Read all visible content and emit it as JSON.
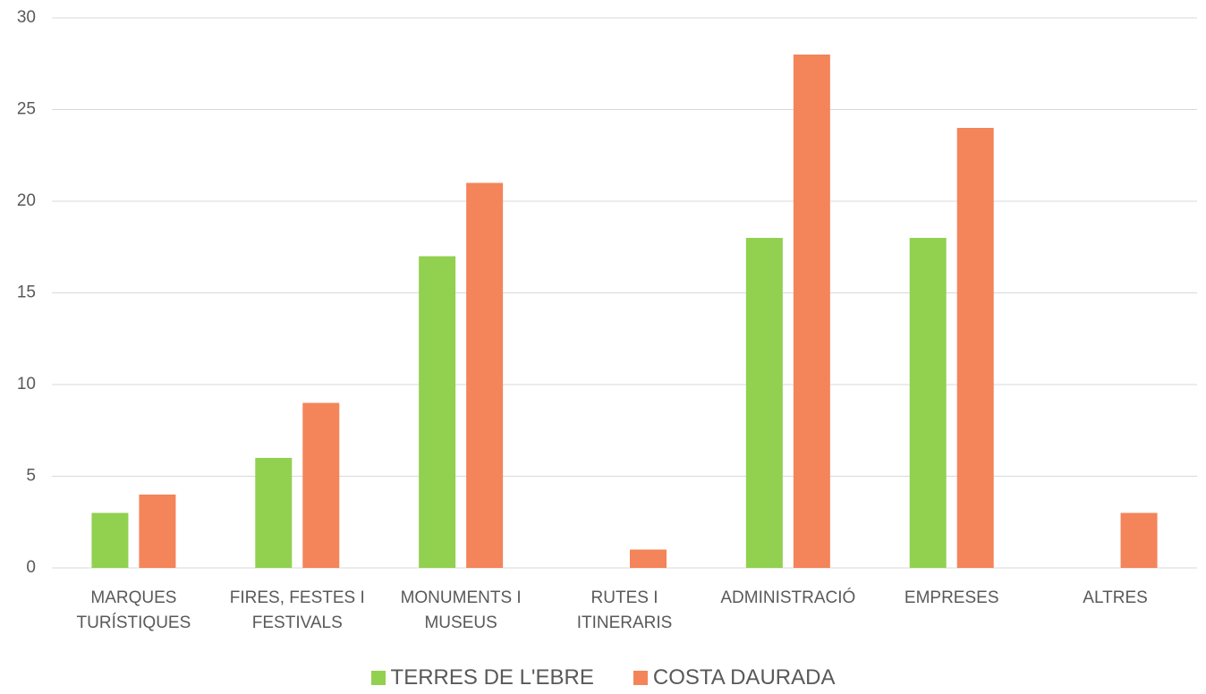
{
  "chart_data": {
    "type": "bar",
    "categories": [
      "MARQUES TURÍSTIQUES",
      "FIRES, FESTES I FESTIVALS",
      "MONUMENTS I MUSEUS",
      "RUTES I ITINERARIS",
      "ADMINISTRACIÓ",
      "EMPRESES",
      "ALTRES"
    ],
    "series": [
      {
        "name": "TERRES DE L'EBRE",
        "color": "#92d050",
        "values": [
          3,
          6,
          17,
          0,
          18,
          18,
          0
        ]
      },
      {
        "name": "COSTA DAURADA",
        "color": "#f4845a",
        "values": [
          4,
          9,
          21,
          1,
          28,
          24,
          3
        ]
      }
    ],
    "ylim": [
      0,
      30
    ],
    "yticks": [
      0,
      5,
      10,
      15,
      20,
      25,
      30
    ],
    "grid": true,
    "legend": "bottom"
  }
}
